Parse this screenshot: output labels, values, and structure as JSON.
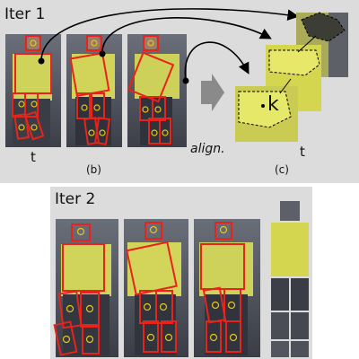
{
  "iter1": {
    "title": "Iter 1",
    "sub_b": "(b)",
    "sub_c": "(c)",
    "t_left": "t",
    "t_right": "t",
    "align_label": "align.",
    "patch_k": "k"
  },
  "iter2": {
    "title": "Iter 2"
  },
  "colors": {
    "skeleton": "#e8231c",
    "joint": "#e6c51a",
    "vest": "#d4d650",
    "panel": "#dcdcdc"
  }
}
